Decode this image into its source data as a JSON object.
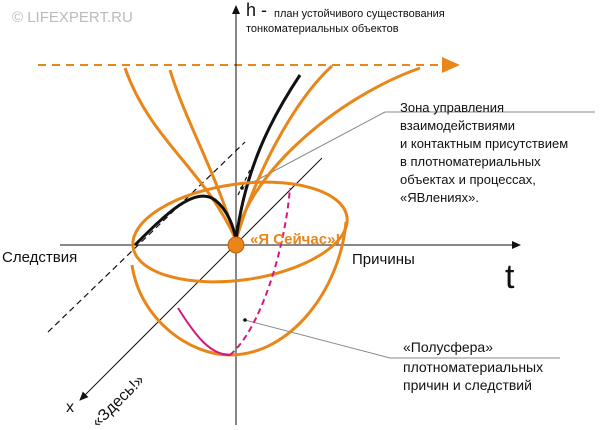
{
  "watermark": "© LIFEXPERT.RU",
  "axes": {
    "h": "h -",
    "t": "t",
    "x": "x",
    "left": "Следствия",
    "right": "Причины"
  },
  "h_caption": [
    "план устойчивого существования",
    "тонкоматериальных объектов"
  ],
  "zone_caption": [
    "Зона управления",
    "взаимодействиями",
    "и контактным присутствием",
    "в плотноматериальных",
    "объектах и процессах,",
    "«ЯВлениях»."
  ],
  "now_label": "«Я Сейчас»!",
  "here_label": "«Здесь!»",
  "hemisphere_caption": [
    "«Полусфера»",
    "плотноматериальных",
    "причин и следствий"
  ]
}
